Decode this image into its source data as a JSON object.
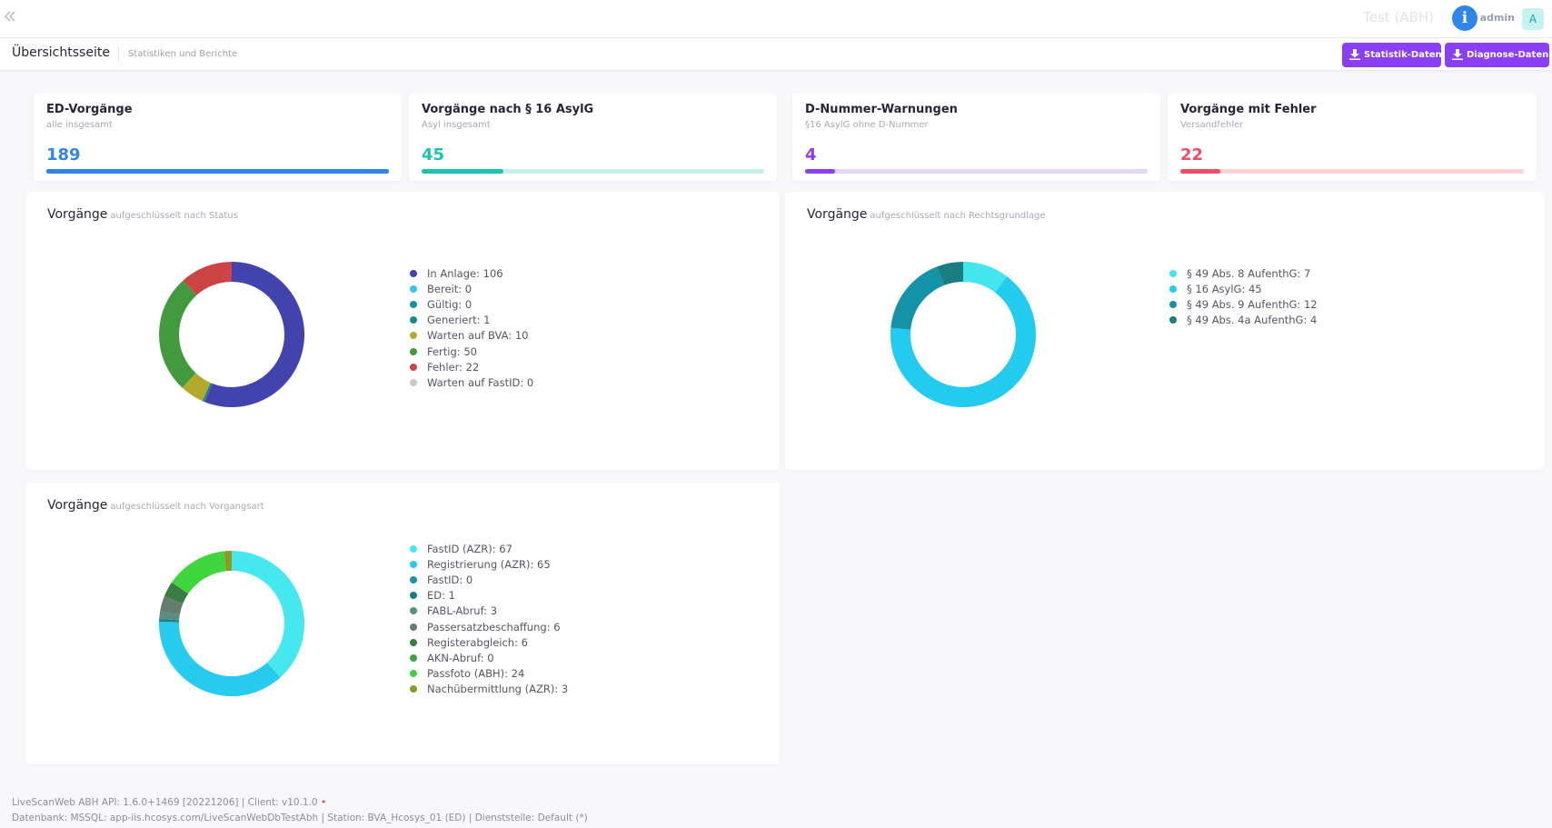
{
  "header": {
    "environment": "Test (ABH)",
    "user_name": "admin",
    "avatar_initial": "A",
    "icons": {
      "back": "double-chevron-left-icon",
      "info": "info-icon"
    }
  },
  "subheader": {
    "title": "Übersichtsseite",
    "subtitle": "Statistiken und Berichte",
    "buttons": {
      "stat_label": "Statistik-Daten",
      "diag_label": "Diagnose-Daten",
      "icon": "download-icon",
      "color": "#8a3ff5"
    }
  },
  "kpis": [
    {
      "title": "ED-Vorgänge",
      "subtitle": "alle insgesamt",
      "value": "189",
      "progress": 1.0,
      "color": "#2f86e8",
      "track_color": "#2f86e8"
    },
    {
      "title": "Vorgänge nach § 16 AsylG",
      "subtitle": "Asyl insgesamt",
      "value": "45",
      "progress": 0.238,
      "color": "#1cc4ae",
      "track_color": "#c6f0ec"
    },
    {
      "title": "D-Nummer-Warnungen",
      "subtitle": "§16 AsylG ohne D-Nummer",
      "value": "4",
      "progress": 0.087,
      "color": "#8a3ff5",
      "track_color": "#e4d6fb"
    },
    {
      "title": "Vorgänge mit Fehler",
      "subtitle": "Versandfehler",
      "value": "22",
      "progress": 0.116,
      "color": "#ee4e63",
      "track_color": "#fbd3d9"
    }
  ],
  "charts": [
    {
      "title": "Vorgänge",
      "subtitle": "aufgeschlüsselt nach Status",
      "chart_data": {
        "type": "pie",
        "categories": [
          "In Anlage",
          "Bereit",
          "Gültig",
          "Generiert",
          "Warten auf BVA",
          "Fertig",
          "Fehler",
          "Warten auf FastID"
        ],
        "values": [
          106,
          0,
          0,
          1,
          10,
          50,
          22,
          0
        ],
        "colors": [
          "#4343ae",
          "#37c6e8",
          "#1891a3",
          "#1a8a86",
          "#b2aa2c",
          "#43993e",
          "#cd4444",
          "#c9c9c9"
        ],
        "labels": [
          "In Anlage: 106",
          "Bereit: 0",
          "Gültig: 0",
          "Generiert: 1",
          "Warten auf BVA: 10",
          "Fertig: 50",
          "Fehler: 22",
          "Warten auf FastID: 0"
        ],
        "donut": true,
        "legend_position": "right"
      }
    },
    {
      "title": "Vorgänge",
      "subtitle": "aufgeschlüsselt nach Rechtsgrundlage",
      "chart_data": {
        "type": "pie",
        "categories": [
          "§ 49 Abs. 8 AufenthG",
          "§ 16 AsylG",
          "§ 49 Abs. 9 AufenthG",
          "§ 49 Abs. 4a AufenthG"
        ],
        "values": [
          7,
          45,
          12,
          4
        ],
        "colors": [
          "#43e6ec",
          "#23cbee",
          "#1392a8",
          "#1a7d7f"
        ],
        "labels": [
          "§ 49 Abs. 8 AufenthG: 7",
          "§ 16 AsylG: 45",
          "§ 49 Abs. 9 AufenthG: 12",
          "§ 49 Abs. 4a AufenthG: 4"
        ],
        "donut": true,
        "legend_position": "right"
      }
    },
    {
      "title": "Vorgänge",
      "subtitle": "aufgeschlüsselt nach Vorgangsart",
      "chart_data": {
        "type": "pie",
        "categories": [
          "FastID (AZR)",
          "Registrierung (AZR)",
          "FastID",
          "ED",
          "FABL-Abruf",
          "Passersatzbeschaffung",
          "Registerabgleich",
          "AKN-Abruf",
          "Passfoto (ABH)",
          "Nachübermittlung (AZR)"
        ],
        "values": [
          67,
          65,
          0,
          1,
          3,
          6,
          6,
          0,
          24,
          3
        ],
        "colors": [
          "#45e8ef",
          "#26cbee",
          "#1893a8",
          "#1a7e80",
          "#5a8e85",
          "#657c70",
          "#3a7c44",
          "#3aa83e",
          "#3fd63d",
          "#8b9a22"
        ],
        "labels": [
          "FastID (AZR): 67",
          "Registrierung (AZR): 65",
          "FastID: 0",
          "ED: 1",
          "FABL-Abruf: 3",
          "Passersatzbeschaffung: 6",
          "Registerabgleich: 6",
          "AKN-Abruf: 0",
          "Passfoto (ABH): 24",
          "Nachübermittlung (AZR): 3"
        ],
        "donut": true,
        "legend_position": "right"
      }
    }
  ],
  "footer": {
    "line1": "LiveScanWeb ABH API: 1.6.0+1469 [20221206] | Client: v10.1.0",
    "line1_dot": "•",
    "line2": "Datenbank: MSSQL: app-iis.hcosys.com/LiveScanWebDbTestAbh | Station: BVA_Hcosys_01 (ED) | Dienststelle: Default (*)"
  }
}
